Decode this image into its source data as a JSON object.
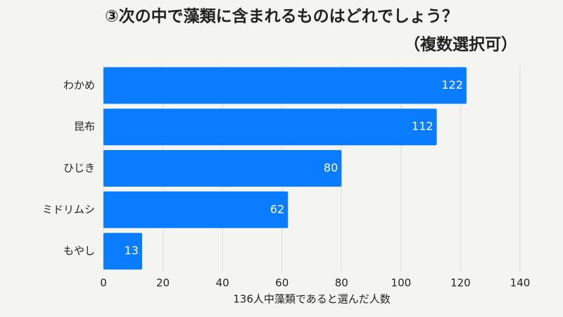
{
  "chart_data": {
    "type": "hbar",
    "title": "③次の中で藻類に含まれるものはどれでしょう？",
    "subtitle": "（複数選択可）",
    "x_label": "136人中藻類であると選んだ人数",
    "categories": [
      "わかめ",
      "昆布",
      "ひじき",
      "ミドリムシ",
      "もやし"
    ],
    "values": [
      122,
      112,
      80,
      62,
      13
    ],
    "color": "#0a7cff",
    "xlim": [
      0,
      140
    ],
    "xticks": [
      0,
      20,
      40,
      60,
      80,
      100,
      120,
      140
    ],
    "grid": true
  }
}
